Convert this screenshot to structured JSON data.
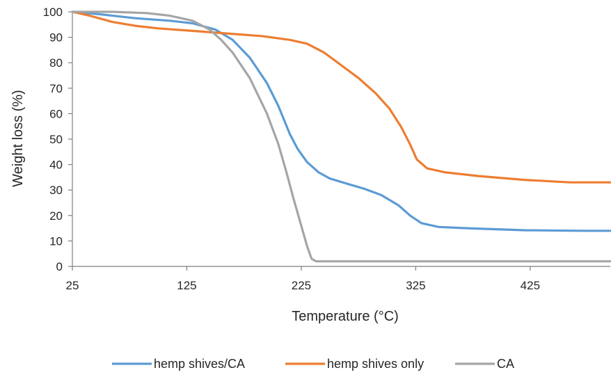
{
  "chart_data": {
    "type": "line",
    "title": "",
    "xlabel": "Temperature (°C)",
    "ylabel": "Weight loss (%)",
    "xlim": [
      25,
      495
    ],
    "ylim": [
      0,
      100
    ],
    "x_ticks": [
      25,
      125,
      225,
      325,
      425
    ],
    "y_ticks": [
      0,
      10,
      20,
      30,
      40,
      50,
      60,
      70,
      80,
      90,
      100
    ],
    "grid": false,
    "legend_position": "bottom",
    "series": [
      {
        "name": "hemp shives/CA",
        "color": "#5B9BD5",
        "points": [
          [
            25,
            100
          ],
          [
            50,
            99
          ],
          [
            80,
            97.5
          ],
          [
            110,
            96.5
          ],
          [
            130,
            95.5
          ],
          [
            150,
            93
          ],
          [
            165,
            89
          ],
          [
            180,
            82
          ],
          [
            195,
            72
          ],
          [
            205,
            63
          ],
          [
            215,
            52
          ],
          [
            222,
            46
          ],
          [
            230,
            41
          ],
          [
            240,
            37
          ],
          [
            250,
            34.5
          ],
          [
            265,
            32.5
          ],
          [
            280,
            30.5
          ],
          [
            295,
            28
          ],
          [
            310,
            24
          ],
          [
            320,
            20
          ],
          [
            330,
            17
          ],
          [
            345,
            15.5
          ],
          [
            370,
            15
          ],
          [
            420,
            14.2
          ],
          [
            470,
            14
          ],
          [
            495,
            14
          ]
        ]
      },
      {
        "name": "hemp shives only",
        "color": "#ED7D31",
        "points": [
          [
            25,
            100
          ],
          [
            40,
            98.5
          ],
          [
            60,
            96
          ],
          [
            80,
            94.5
          ],
          [
            100,
            93.5
          ],
          [
            130,
            92.5
          ],
          [
            160,
            91.5
          ],
          [
            190,
            90.5
          ],
          [
            215,
            89
          ],
          [
            230,
            87.5
          ],
          [
            245,
            84
          ],
          [
            260,
            79
          ],
          [
            275,
            74
          ],
          [
            290,
            68
          ],
          [
            302,
            62
          ],
          [
            312,
            55
          ],
          [
            320,
            48
          ],
          [
            326,
            42
          ],
          [
            335,
            38.5
          ],
          [
            350,
            37
          ],
          [
            380,
            35.5
          ],
          [
            420,
            34
          ],
          [
            460,
            33
          ],
          [
            495,
            33
          ]
        ]
      },
      {
        "name": "CA",
        "color": "#A5A5A5",
        "points": [
          [
            25,
            100
          ],
          [
            60,
            100
          ],
          [
            90,
            99.5
          ],
          [
            110,
            98.5
          ],
          [
            130,
            96.5
          ],
          [
            145,
            93
          ],
          [
            155,
            89
          ],
          [
            165,
            84
          ],
          [
            180,
            74
          ],
          [
            195,
            60
          ],
          [
            205,
            48
          ],
          [
            212,
            37
          ],
          [
            218,
            27
          ],
          [
            225,
            16
          ],
          [
            230,
            8
          ],
          [
            234,
            3
          ],
          [
            238,
            2
          ],
          [
            250,
            2
          ],
          [
            300,
            2
          ],
          [
            400,
            2
          ],
          [
            495,
            2
          ]
        ]
      }
    ]
  }
}
